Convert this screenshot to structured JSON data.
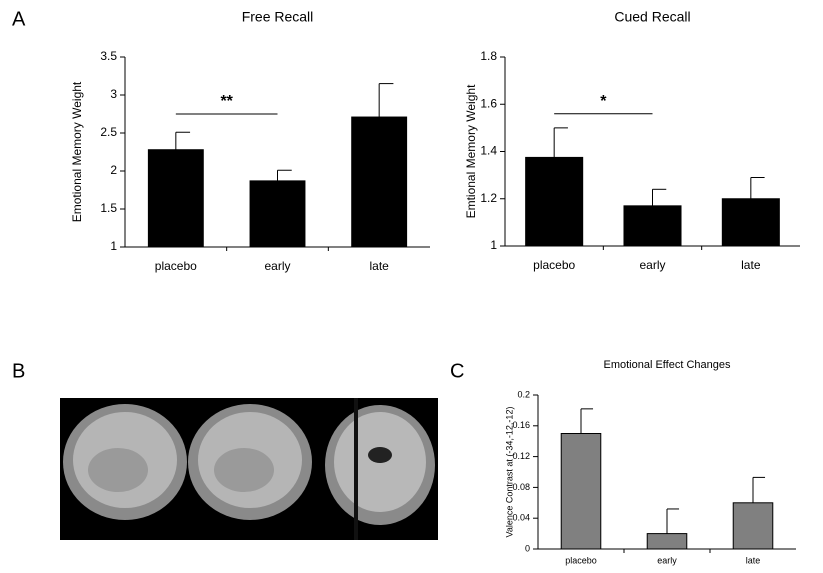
{
  "panels": [
    "A",
    "B",
    "C"
  ],
  "chart_data": [
    {
      "type": "bar",
      "title": "Free Recall",
      "y_label": "Emotional Memory Weight",
      "categories": [
        "placebo",
        "early",
        "late"
      ],
      "values": [
        2.28,
        1.87,
        2.71
      ],
      "errors": [
        0.23,
        0.14,
        0.44
      ],
      "color": "#000000",
      "ylim": [
        1,
        3.5
      ],
      "yticks": [
        1,
        1.5,
        2,
        2.5,
        3,
        3.5
      ],
      "annotation": "**"
    },
    {
      "type": "bar",
      "title": "Cued Recall",
      "y_label": "Emtional Memory Weight",
      "categories": [
        "placebo",
        "early",
        "late"
      ],
      "values": [
        1.375,
        1.17,
        1.2
      ],
      "errors": [
        0.125,
        0.07,
        0.09
      ],
      "color": "#000000",
      "ylim": [
        1,
        1.8
      ],
      "yticks": [
        1,
        1.2,
        1.4,
        1.6,
        1.8
      ],
      "annotation": "*"
    },
    {
      "type": "bar",
      "title": "Emotional Effect Changes",
      "y_label": "Valence Contrast at (-34,-12,-12)",
      "categories": [
        "placebo",
        "early",
        "late"
      ],
      "values": [
        0.15,
        0.02,
        0.06
      ],
      "errors": [
        0.032,
        0.032,
        0.033
      ],
      "color": "#808080",
      "ylim": [
        0,
        0.2
      ],
      "yticks": [
        0,
        0.04,
        0.08,
        0.12,
        0.16,
        0.2
      ]
    }
  ]
}
